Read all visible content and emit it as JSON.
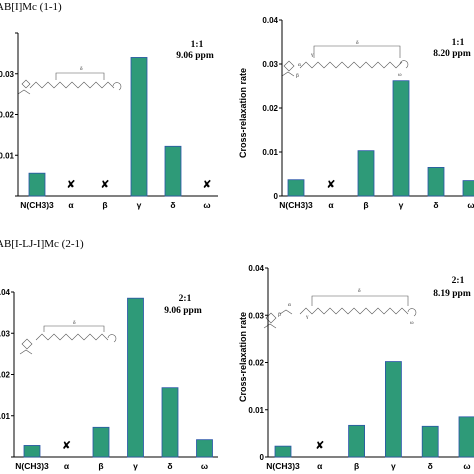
{
  "colors": {
    "bar_fill": "#2e9a78",
    "bar_edge": "#2a55a8",
    "axis": "#000000"
  },
  "chart_data": [
    {
      "type": "bar",
      "title": "AB[I]Mc (1-1)",
      "ylabel": "",
      "ylim": [
        0,
        0.04
      ],
      "yticks": [
        "",
        "0.03",
        "0.02",
        "0.01",
        ""
      ],
      "categories": [
        "N(CH3)3",
        "α",
        "β",
        "γ",
        "δ",
        "ω"
      ],
      "values": [
        0.0056,
        null,
        null,
        0.034,
        0.0122,
        null
      ],
      "absent_marker": "✘",
      "annotation": [
        "1:1",
        "9.06 ppm"
      ],
      "structure_labels": [
        "δ"
      ]
    },
    {
      "type": "bar",
      "title": "",
      "ylabel": "Cross-relaxation rate",
      "ylim": [
        0,
        0.04
      ],
      "yticks": [
        "0.04",
        "0.03",
        "0.02",
        "0.01",
        "0"
      ],
      "categories": [
        "N(CH3)3",
        "α",
        "β",
        "γ",
        "δ",
        "ω"
      ],
      "values": [
        0.0037,
        null,
        0.0103,
        0.0262,
        0.0065,
        0.0035
      ],
      "absent_marker": "✘",
      "annotation": [
        "1:1",
        "8.20 ppm"
      ],
      "structure_labels": [
        "δ",
        "γ",
        "α",
        "β",
        "ω"
      ]
    },
    {
      "type": "bar",
      "title": "AB[I-LJ-I]Mc (2-1)",
      "ylabel": "",
      "ylim": [
        0,
        0.04
      ],
      "yticks": [
        ".04",
        "0.03",
        "0.02",
        "0.01",
        ""
      ],
      "categories": [
        "N(CH3)3",
        "α",
        "β",
        "γ",
        "δ",
        "ω"
      ],
      "values": [
        0.0028,
        null,
        0.0072,
        0.0385,
        0.0168,
        0.0042
      ],
      "absent_marker": "✘",
      "annotation": [
        "2:1",
        "9.06 ppm"
      ],
      "structure_labels": [
        "δ"
      ]
    },
    {
      "type": "bar",
      "title": "",
      "ylabel": "Cross-relaxation rate",
      "ylim": [
        0,
        0.04
      ],
      "yticks": [
        "0.04",
        "0.03",
        "0.02",
        "0.01",
        "0"
      ],
      "categories": [
        "N(CH3)3",
        "α",
        "β",
        "γ",
        "δ",
        "ω"
      ],
      "values": [
        0.0023,
        null,
        0.0067,
        0.0202,
        0.0065,
        0.0085
      ],
      "absent_marker": "✘",
      "annotation": [
        "2:1",
        "8.19 ppm"
      ],
      "structure_labels": [
        "δ",
        "α",
        "β",
        "γ",
        "ω"
      ]
    }
  ]
}
